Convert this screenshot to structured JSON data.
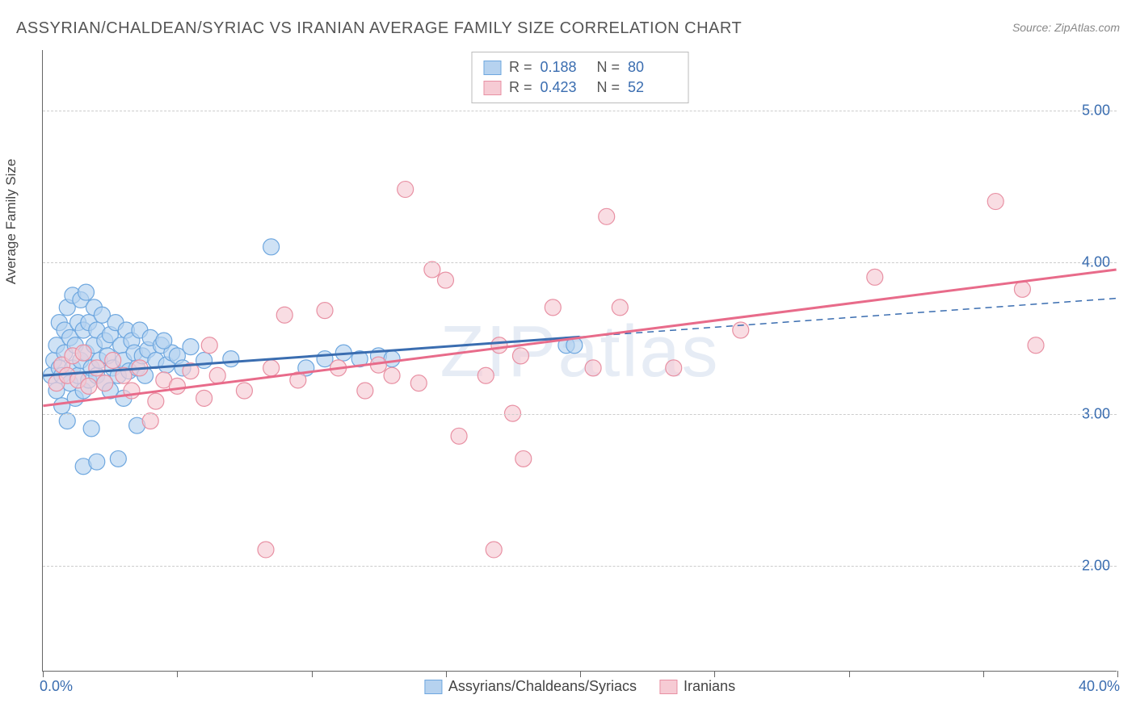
{
  "title": "ASSYRIAN/CHALDEAN/SYRIAC VS IRANIAN AVERAGE FAMILY SIZE CORRELATION CHART",
  "source": "Source: ZipAtlas.com",
  "watermark": "ZIPatlas",
  "ylabel": "Average Family Size",
  "xlim": {
    "min": 0.0,
    "max": 40.0,
    "min_label": "0.0%",
    "max_label": "40.0%"
  },
  "ylim": {
    "min": 1.3,
    "max": 5.4
  },
  "y_ticks": [
    {
      "v": 2.0,
      "label": "2.00"
    },
    {
      "v": 3.0,
      "label": "3.00"
    },
    {
      "v": 4.0,
      "label": "4.00"
    },
    {
      "v": 5.0,
      "label": "5.00"
    }
  ],
  "x_ticks_pct": [
    0,
    5,
    10,
    15,
    20,
    25,
    30,
    35,
    40
  ],
  "background_color": "#ffffff",
  "grid_color": "#cccccc",
  "axis_color": "#666666",
  "tick_label_color": "#3a6db0",
  "marker_radius": 10,
  "marker_stroke_width": 1.2,
  "series": [
    {
      "key": "assyrians",
      "label": "Assyrians/Chaldeans/Syriacs",
      "fill": "#b6d2ef",
      "stroke": "#6ea7df",
      "r_value": "0.188",
      "n_value": "80",
      "trend": {
        "y_at_xmin": 3.25,
        "y_at_xmax": 3.76,
        "x_solid_max": 20.0,
        "line_width": 3,
        "dash_after": true
      },
      "points": [
        [
          0.3,
          3.25
        ],
        [
          0.4,
          3.35
        ],
        [
          0.5,
          3.15
        ],
        [
          0.5,
          3.45
        ],
        [
          0.6,
          3.3
        ],
        [
          0.6,
          3.6
        ],
        [
          0.7,
          3.05
        ],
        [
          0.7,
          3.25
        ],
        [
          0.8,
          3.4
        ],
        [
          0.8,
          3.55
        ],
        [
          0.9,
          2.95
        ],
        [
          0.9,
          3.7
        ],
        [
          1.0,
          3.2
        ],
        [
          1.0,
          3.5
        ],
        [
          1.1,
          3.3
        ],
        [
          1.1,
          3.78
        ],
        [
          1.2,
          3.1
        ],
        [
          1.2,
          3.45
        ],
        [
          1.3,
          3.25
        ],
        [
          1.3,
          3.6
        ],
        [
          1.4,
          3.35
        ],
        [
          1.4,
          3.75
        ],
        [
          1.5,
          3.15
        ],
        [
          1.5,
          3.55
        ],
        [
          1.6,
          3.4
        ],
        [
          1.6,
          3.8
        ],
        [
          1.7,
          3.22
        ],
        [
          1.7,
          3.6
        ],
        [
          1.8,
          3.3
        ],
        [
          1.8,
          2.9
        ],
        [
          1.9,
          3.45
        ],
        [
          1.9,
          3.7
        ],
        [
          2.0,
          3.25
        ],
        [
          2.0,
          3.55
        ],
        [
          2.1,
          3.35
        ],
        [
          2.2,
          3.65
        ],
        [
          2.3,
          3.2
        ],
        [
          2.3,
          3.48
        ],
        [
          2.4,
          3.38
        ],
        [
          2.5,
          3.15
        ],
        [
          2.5,
          3.52
        ],
        [
          2.6,
          3.3
        ],
        [
          2.7,
          3.6
        ],
        [
          2.8,
          3.25
        ],
        [
          2.9,
          3.45
        ],
        [
          3.0,
          3.35
        ],
        [
          3.0,
          3.1
        ],
        [
          3.1,
          3.55
        ],
        [
          3.2,
          3.28
        ],
        [
          3.3,
          3.48
        ],
        [
          3.4,
          3.4
        ],
        [
          3.5,
          3.3
        ],
        [
          3.6,
          3.55
        ],
        [
          3.7,
          3.38
        ],
        [
          3.8,
          3.25
        ],
        [
          3.9,
          3.42
        ],
        [
          4.0,
          3.5
        ],
        [
          4.2,
          3.35
        ],
        [
          4.4,
          3.45
        ],
        [
          4.6,
          3.32
        ],
        [
          4.8,
          3.4
        ],
        [
          5.0,
          3.38
        ],
        [
          5.2,
          3.3
        ],
        [
          5.5,
          3.44
        ],
        [
          1.5,
          2.65
        ],
        [
          2.0,
          2.68
        ],
        [
          2.8,
          2.7
        ],
        [
          3.5,
          2.92
        ],
        [
          4.5,
          3.48
        ],
        [
          6.0,
          3.35
        ],
        [
          7.0,
          3.36
        ],
        [
          8.5,
          4.1
        ],
        [
          9.8,
          3.3
        ],
        [
          10.5,
          3.36
        ],
        [
          11.2,
          3.4
        ],
        [
          11.8,
          3.36
        ],
        [
          12.5,
          3.38
        ],
        [
          13.0,
          3.36
        ],
        [
          19.5,
          3.45
        ],
        [
          19.8,
          3.45
        ]
      ]
    },
    {
      "key": "iranians",
      "label": "Iranians",
      "fill": "#f6cbd4",
      "stroke": "#e890a3",
      "r_value": "0.423",
      "n_value": "52",
      "trend": {
        "y_at_xmin": 3.05,
        "y_at_xmax": 3.95,
        "x_solid_max": 40.0,
        "line_width": 3,
        "dash_after": false
      },
      "points": [
        [
          0.5,
          3.2
        ],
        [
          0.7,
          3.32
        ],
        [
          0.9,
          3.25
        ],
        [
          1.1,
          3.38
        ],
        [
          1.3,
          3.22
        ],
        [
          1.5,
          3.4
        ],
        [
          1.7,
          3.18
        ],
        [
          2.0,
          3.3
        ],
        [
          2.3,
          3.2
        ],
        [
          2.6,
          3.35
        ],
        [
          3.0,
          3.25
        ],
        [
          3.3,
          3.15
        ],
        [
          3.6,
          3.3
        ],
        [
          4.0,
          2.95
        ],
        [
          4.5,
          3.22
        ],
        [
          5.0,
          3.18
        ],
        [
          5.5,
          3.28
        ],
        [
          6.0,
          3.1
        ],
        [
          6.5,
          3.25
        ],
        [
          7.5,
          3.15
        ],
        [
          8.3,
          2.1
        ],
        [
          8.5,
          3.3
        ],
        [
          9.0,
          3.65
        ],
        [
          9.5,
          3.22
        ],
        [
          10.5,
          3.68
        ],
        [
          11.0,
          3.3
        ],
        [
          12.0,
          3.15
        ],
        [
          13.0,
          3.25
        ],
        [
          13.5,
          4.48
        ],
        [
          14.0,
          3.2
        ],
        [
          14.5,
          3.95
        ],
        [
          15.0,
          3.88
        ],
        [
          15.5,
          2.85
        ],
        [
          16.5,
          3.25
        ],
        [
          16.8,
          2.1
        ],
        [
          17.5,
          3.0
        ],
        [
          17.8,
          3.38
        ],
        [
          17.9,
          2.7
        ],
        [
          19.0,
          3.7
        ],
        [
          20.5,
          3.3
        ],
        [
          21.0,
          4.3
        ],
        [
          21.5,
          3.7
        ],
        [
          23.5,
          3.3
        ],
        [
          26.0,
          3.55
        ],
        [
          31.0,
          3.9
        ],
        [
          35.5,
          4.4
        ],
        [
          36.5,
          3.82
        ],
        [
          37.0,
          3.45
        ],
        [
          17.0,
          3.45
        ],
        [
          12.5,
          3.32
        ],
        [
          6.2,
          3.45
        ],
        [
          4.2,
          3.08
        ]
      ]
    }
  ],
  "legend_top": {
    "r_label": "R =",
    "n_label": "N ="
  },
  "title_fontsize": 20,
  "label_fontsize": 17
}
